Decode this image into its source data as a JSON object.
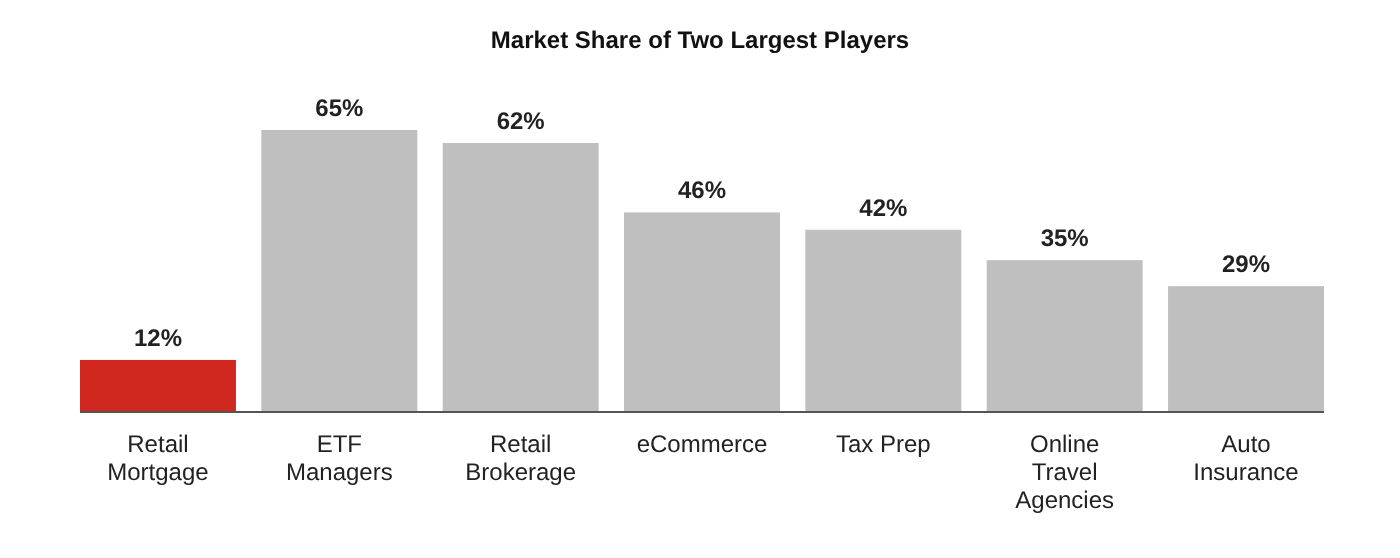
{
  "chart_data": {
    "type": "bar",
    "title": "Market Share of Two Largest Players",
    "categories": [
      "Retail Mortgage",
      "ETF Managers",
      "Retail Brokerage",
      "eCommerce",
      "Tax Prep",
      "Online Travel Agencies",
      "Auto Insurance"
    ],
    "values": [
      12,
      65,
      62,
      46,
      42,
      35,
      29
    ],
    "value_labels": [
      "12%",
      "65%",
      "62%",
      "46%",
      "42%",
      "35%",
      "29%"
    ],
    "colors": [
      "#d0281e",
      "#bfbfbf",
      "#bfbfbf",
      "#bfbfbf",
      "#bfbfbf",
      "#bfbfbf",
      "#bfbfbf"
    ]
  }
}
